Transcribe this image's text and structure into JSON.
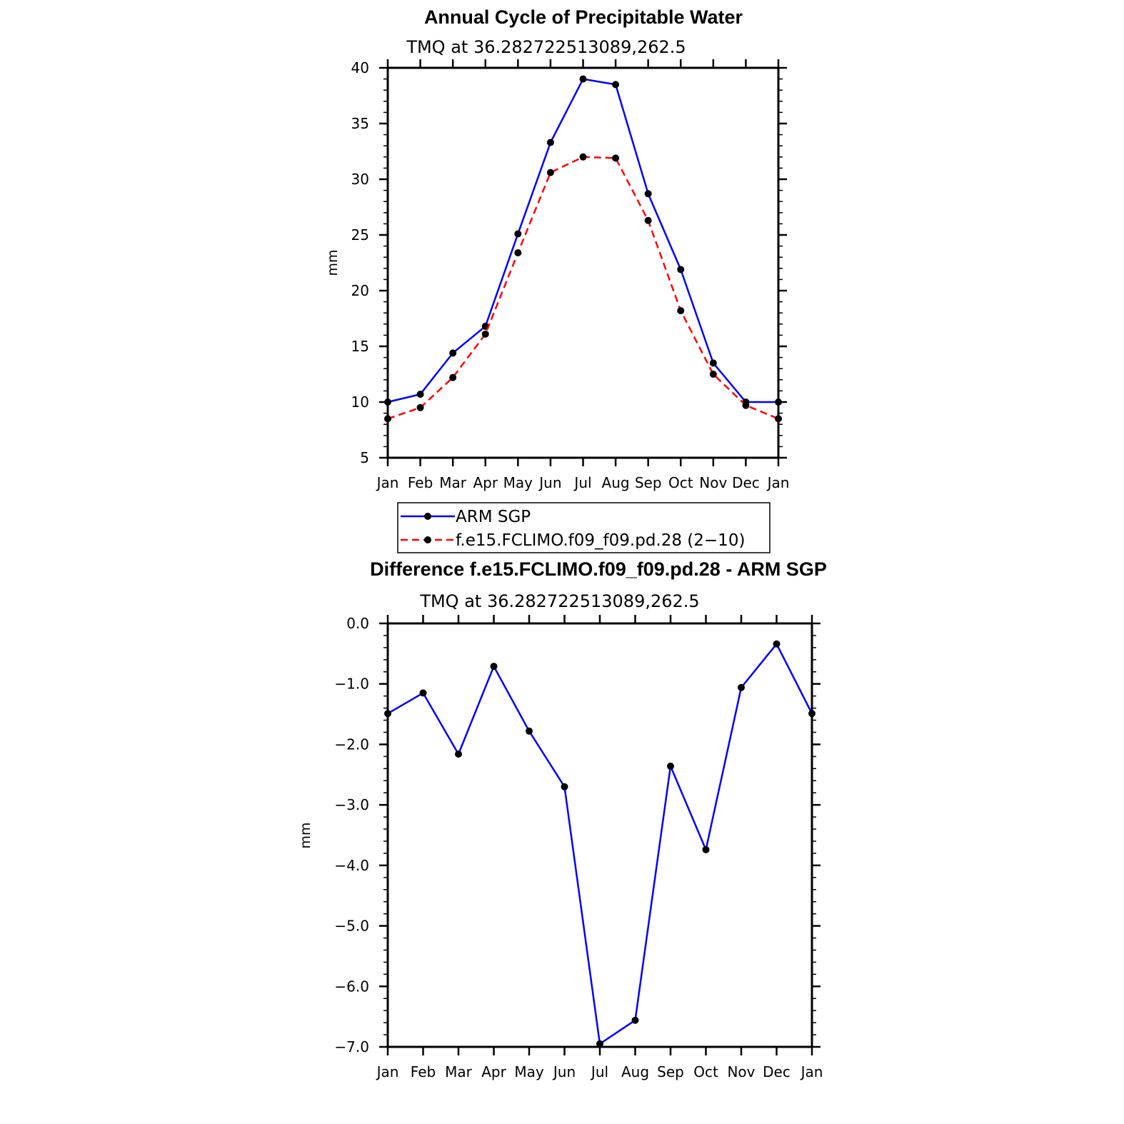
{
  "chart_data": [
    {
      "type": "line",
      "title": "Annual Cycle of Precipitable Water",
      "subtitle": "TMQ at 36.282722513089,262.5",
      "xlabel": "",
      "ylabel": "mm",
      "categories": [
        "Jan",
        "Feb",
        "Mar",
        "Apr",
        "May",
        "Jun",
        "Jul",
        "Aug",
        "Sep",
        "Oct",
        "Nov",
        "Dec",
        "Jan"
      ],
      "ylim": [
        5,
        40
      ],
      "yticks": [
        5,
        10,
        15,
        20,
        25,
        30,
        35,
        40
      ],
      "ytick_labels": [
        "5",
        "10",
        "15",
        "20",
        "25",
        "30",
        "35",
        "40"
      ],
      "series": [
        {
          "name": "ARM SGP",
          "color": "#0000ff",
          "dash": "solid",
          "values": [
            10.0,
            10.7,
            14.4,
            16.8,
            25.1,
            33.3,
            39.0,
            38.5,
            28.7,
            21.9,
            13.5,
            10.0,
            10.0
          ]
        },
        {
          "name": "f.e15.FCLIMO.f09_f09.pd.28 (2−10)",
          "color": "#ff0000",
          "dash": "dashed",
          "values": [
            8.5,
            9.5,
            12.2,
            16.1,
            23.4,
            30.6,
            32.0,
            31.9,
            26.3,
            18.2,
            12.5,
            9.7,
            8.5
          ]
        }
      ],
      "legend": "below"
    },
    {
      "type": "line",
      "title": "Difference f.e15.FCLIMO.f09_f09.pd.28 - ARM SGP",
      "subtitle": "TMQ at 36.282722513089,262.5",
      "xlabel": "",
      "ylabel": "mm",
      "categories": [
        "Jan",
        "Feb",
        "Mar",
        "Apr",
        "May",
        "Jun",
        "Jul",
        "Aug",
        "Sep",
        "Oct",
        "Nov",
        "Dec",
        "Jan"
      ],
      "ylim": [
        -7.0,
        0.0
      ],
      "yticks": [
        0,
        -1,
        -2,
        -3,
        -4,
        -5,
        -6,
        -7
      ],
      "ytick_labels": [
        "0.0",
        "−1.0",
        "−2.0",
        "−3.0",
        "−4.0",
        "−5.0",
        "−6.0",
        "−7.0"
      ],
      "series": [
        {
          "name": "Difference",
          "color": "#0000ff",
          "dash": "solid",
          "values": [
            -1.49,
            -1.15,
            -2.16,
            -0.71,
            -1.78,
            -2.7,
            -6.95,
            -6.56,
            -2.36,
            -3.74,
            -1.06,
            -0.34,
            -1.49
          ]
        }
      ]
    }
  ]
}
